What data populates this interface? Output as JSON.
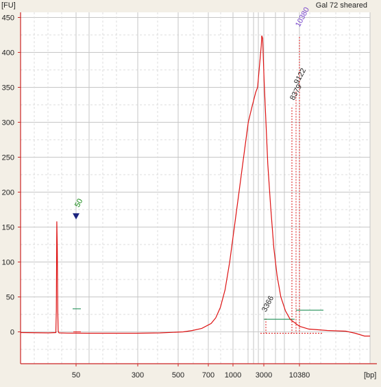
{
  "chart_data": {
    "type": "line",
    "title": "Gal 72 sheared",
    "ylabel": "[FU]",
    "xlabel": "[bp]",
    "ylim": [
      -45,
      458
    ],
    "y_ticks": [
      0,
      50,
      100,
      150,
      200,
      250,
      300,
      350,
      400,
      450
    ],
    "x_tick_labels": [
      "50",
      "300",
      "500",
      "700",
      "1000",
      "3000",
      "10380"
    ],
    "grid": true,
    "colors": {
      "trace": "#dd1111",
      "plot_bg": "#ffffff",
      "page_bg": "#f3efe6",
      "axis": "#cc2222",
      "grid": "#c8c8c8",
      "region": "#339966",
      "marker": "#1a237e",
      "marker_label": "#118811",
      "peak_label_main": "#7744cc"
    },
    "peaks": [
      {
        "label": "50",
        "fu": 158,
        "color": "#118811",
        "marker": true
      },
      {
        "label": "3366",
        "fu": 21,
        "color": "#222222"
      },
      {
        "label": "8379",
        "fu": 323,
        "color": "#222222"
      },
      {
        "label": "9122",
        "fu": 346,
        "color": "#222222"
      },
      {
        "label": "10380",
        "fu": 424,
        "color": "#7744cc"
      }
    ],
    "series": [
      {
        "trace": [
          [
            0,
            -1
          ],
          [
            60,
            -1.5
          ],
          [
            76,
            -1
          ],
          [
            77,
            30
          ],
          [
            78,
            158
          ],
          [
            79,
            120
          ],
          [
            80,
            30
          ],
          [
            81,
            2
          ],
          [
            82,
            -1
          ],
          [
            83,
            -1.5
          ],
          [
            100,
            -1.8
          ],
          [
            150,
            -2
          ],
          [
            200,
            -2
          ],
          [
            250,
            -2
          ],
          [
            300,
            -1.5
          ],
          [
            350,
            0
          ],
          [
            370,
            2
          ],
          [
            390,
            5
          ],
          [
            410,
            12
          ],
          [
            420,
            20
          ],
          [
            430,
            35
          ],
          [
            440,
            60
          ],
          [
            450,
            100
          ],
          [
            460,
            150
          ],
          [
            470,
            200
          ],
          [
            480,
            250
          ],
          [
            490,
            300
          ],
          [
            498,
            322
          ],
          [
            506,
            343
          ],
          [
            510,
            350
          ],
          [
            514,
            380
          ],
          [
            518,
            410
          ],
          [
            519,
            424
          ],
          [
            521,
            420
          ],
          [
            524,
            360
          ],
          [
            528,
            300
          ],
          [
            532,
            240
          ],
          [
            538,
            180
          ],
          [
            545,
            120
          ],
          [
            552,
            80
          ],
          [
            560,
            50
          ],
          [
            570,
            30
          ],
          [
            580,
            18
          ],
          [
            600,
            8
          ],
          [
            620,
            4
          ],
          [
            660,
            2
          ],
          [
            700,
            1
          ],
          [
            720,
            -2
          ],
          [
            740,
            -6
          ],
          [
            752,
            -6
          ]
        ]
      }
    ]
  }
}
